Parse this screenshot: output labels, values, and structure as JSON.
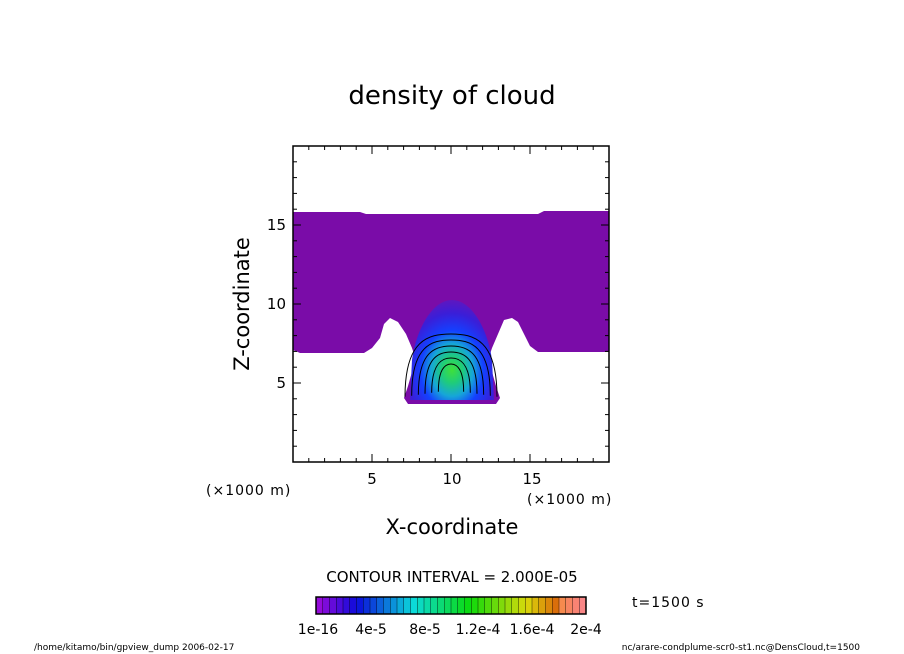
{
  "chart_data": {
    "type": "heatmap",
    "title": "density of cloud",
    "xlabel": "X-coordinate",
    "ylabel": "Z-coordinate",
    "x_unit": "(×1000 m)",
    "y_unit": "(×1000 m)",
    "xlim": [
      0,
      20
    ],
    "ylim": [
      0,
      20
    ],
    "x_ticks": [
      "5",
      "10",
      "15"
    ],
    "y_ticks": [
      "5",
      "10",
      "15"
    ],
    "x_tick_values": [
      5,
      10,
      15
    ],
    "y_tick_values": [
      5,
      10,
      15
    ],
    "contour_interval": "CONTOUR INTERVAL = 2.000E-05",
    "time_label": "t=1500 s",
    "colorbar_labels": [
      "1e-16",
      "4e-5",
      "8e-5",
      "1.2e-4",
      "1.6e-4",
      "2e-4"
    ],
    "colorbar_range": [
      0,
      0.0002
    ],
    "plume_center_x": 10,
    "plume_peak_z": 5.7,
    "layer_bottom_z": 7,
    "layer_top_z": 15.8,
    "plume_base_z": 4,
    "contour_levels": [
      2e-05,
      4e-05,
      6e-05,
      8e-05,
      0.0001,
      0.00012
    ]
  },
  "footer": {
    "left": "/home/kitamo/bin/gpview_dump  2006-02-17",
    "right": "nc/arare-condplume-scr0-st1.nc@DensCloud,t=1500"
  },
  "colors": {
    "background": "#ffffff",
    "lowest_fill": "#7a0ca8",
    "text": "#000000"
  }
}
